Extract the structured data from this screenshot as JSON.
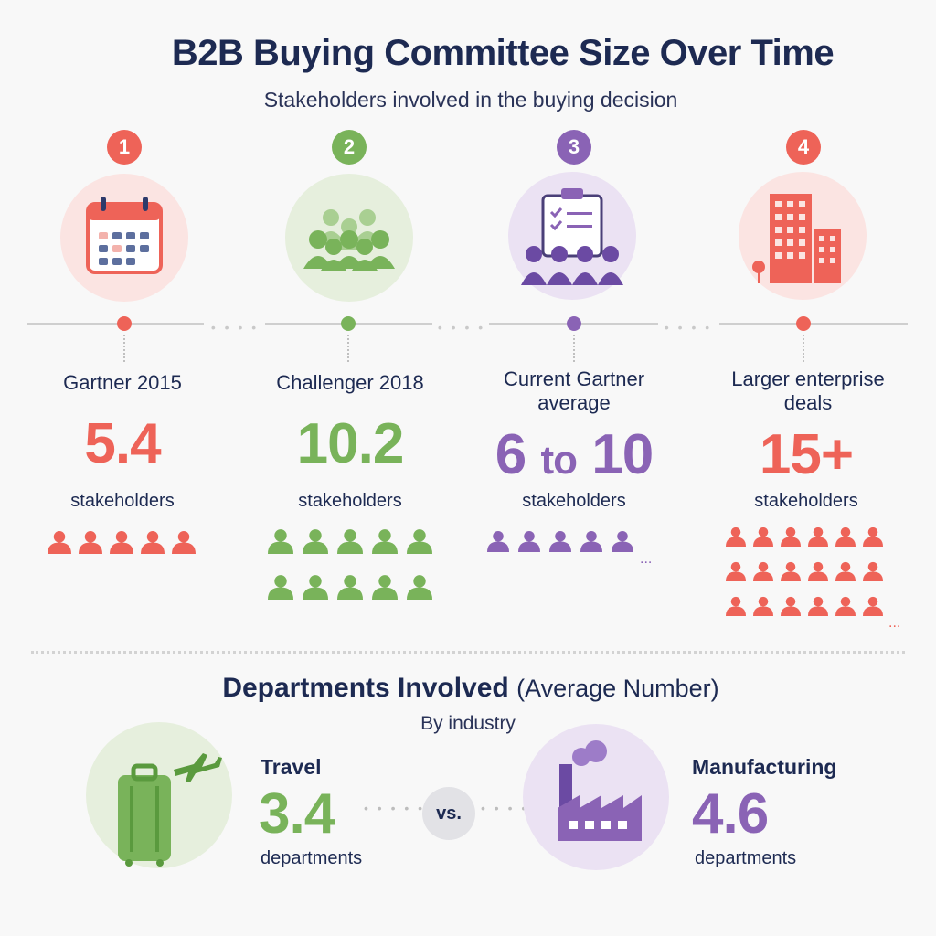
{
  "header": {
    "title": "B2B Buying Committee Size Over Time",
    "subtitle": "Stakeholders involved in the buying decision"
  },
  "colors": {
    "red": "#ee6358",
    "green": "#79b35a",
    "purple": "#8a63b5",
    "navy": "#1d2a52"
  },
  "timeline": [
    {
      "step": "1",
      "icon": "calendar-icon",
      "label": "Gartner 2015",
      "value": "5.4",
      "unit": "stakeholders",
      "people_count": 5
    },
    {
      "step": "2",
      "icon": "group-icon",
      "label": "Challenger 2018",
      "value": "10.2",
      "unit": "stakeholders",
      "people_count": 10
    },
    {
      "step": "3",
      "icon": "clipboard-meeting-icon",
      "label": "Current Gartner average",
      "value_from": "6",
      "value_to_word": "to",
      "value_to": "10",
      "unit": "stakeholders",
      "people_count": 5
    },
    {
      "step": "4",
      "icon": "building-icon",
      "label": "Larger enterprise deals",
      "value": "15+",
      "unit": "stakeholders",
      "people_count": 18
    }
  ],
  "departments": {
    "title": "Departments Involved",
    "title_note": "(Average Number)",
    "subtitle": "By industry",
    "vs_label": "vs.",
    "industries": [
      {
        "name": "Travel",
        "value": "3.4",
        "unit": "departments",
        "icon": "luggage-airplane-icon"
      },
      {
        "name": "Manufacturing",
        "value": "4.6",
        "unit": "departments",
        "icon": "factory-icon"
      }
    ]
  }
}
